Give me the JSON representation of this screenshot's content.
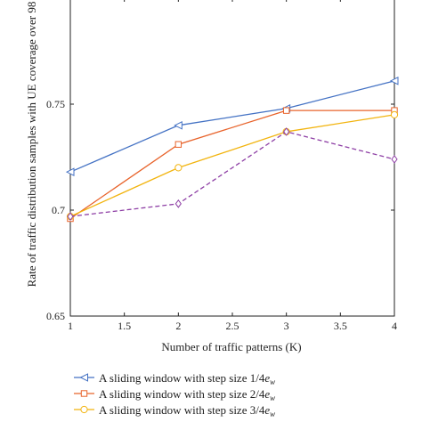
{
  "chart_data": {
    "type": "line",
    "xlabel": "Number of traffic patterns (K)",
    "ylabel": "Rate of traffic distribution samples with UE coverage over 98",
    "xlim": [
      1,
      4
    ],
    "ylim": [
      0.65,
      0.8
    ],
    "x_ticks": [
      "1",
      "1.5",
      "2",
      "2.5",
      "3",
      "3.5",
      "4"
    ],
    "y_ticks": [
      "0.65",
      "0.7",
      "0.75"
    ],
    "grid": false,
    "legend_position": "bottom",
    "series": [
      {
        "name": "A sliding window with step size 1/4e_w",
        "legend_main": "A sliding window with step size 1/4",
        "legend_var": "e",
        "legend_sub": "w",
        "color": "#4472c4",
        "marker": "triangle-left",
        "dashed": false,
        "x": [
          1,
          2,
          3,
          4
        ],
        "y": [
          0.718,
          0.74,
          0.748,
          0.761
        ]
      },
      {
        "name": "A sliding window with step size 2/4e_w",
        "legend_main": "A sliding window with step size 2/4",
        "legend_var": "e",
        "legend_sub": "w",
        "color": "#e8632b",
        "marker": "square",
        "dashed": false,
        "x": [
          1,
          2,
          3,
          4
        ],
        "y": [
          0.696,
          0.731,
          0.747,
          0.747
        ]
      },
      {
        "name": "A sliding window with step size 3/4e_w",
        "legend_main": "A sliding window with step size 3/4",
        "legend_var": "e",
        "legend_sub": "w",
        "color": "#f2b40f",
        "marker": "circle",
        "dashed": false,
        "x": [
          1,
          2,
          3,
          4
        ],
        "y": [
          0.697,
          0.72,
          0.737,
          0.745
        ]
      },
      {
        "name": "",
        "color": "#8e3fa5",
        "marker": "diamond",
        "dashed": true,
        "x": [
          1,
          2,
          3,
          4
        ],
        "y": [
          0.697,
          0.703,
          0.737,
          0.724
        ]
      }
    ]
  }
}
